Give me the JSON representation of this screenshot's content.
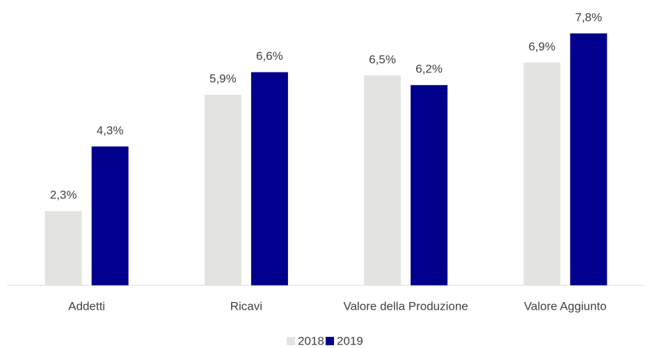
{
  "chart_data": {
    "type": "bar",
    "categories": [
      "Addetti",
      "Ricavi",
      "Valore della Produzione",
      "Valore Aggiunto"
    ],
    "series": [
      {
        "name": "2018",
        "color": "#e3e3df",
        "values": [
          2.3,
          5.9,
          6.5,
          6.9
        ],
        "value_labels": [
          "2,3%",
          "5,9%",
          "6,5%",
          "6,9%"
        ]
      },
      {
        "name": "2019",
        "color": "#00008c",
        "values": [
          4.3,
          6.6,
          6.2,
          7.8
        ],
        "value_labels": [
          "4,3%",
          "6,6%",
          "6,2%",
          "7,8%"
        ]
      }
    ],
    "legend": "bottom"
  }
}
